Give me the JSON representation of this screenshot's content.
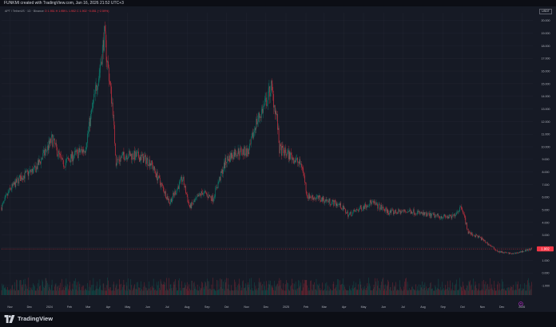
{
  "header": {
    "caption": "FUNKMI created with TradingView.com, Jan 16, 2026 21:52 UTC+3"
  },
  "legend": {
    "symbol": "APT / TetherUS · 1D · Binance",
    "values": "O 1.951  H 1.959  L 1.902  C 1.902  −0.051 (−2.59%)"
  },
  "currency_badge": "USDT",
  "price_tag": {
    "label": "1.902",
    "value": 1.902,
    "color": "#f23645"
  },
  "brand": {
    "label": "TradingView"
  },
  "colors": {
    "up": "#089981",
    "down": "#f23645",
    "background": "#161a25",
    "grid": "#242733",
    "text": "#b2b5be"
  },
  "chart_data": {
    "type": "candlestick",
    "title": "",
    "xlabel": "",
    "ylabel": "",
    "ylim": [
      -1.0,
      21.0
    ],
    "y_ticks": [
      "-1.000",
      "0.000",
      "1.000",
      "2.000",
      "3.000",
      "4.000",
      "5.000",
      "6.000",
      "7.000",
      "8.000",
      "9.000",
      "10.000",
      "11.000",
      "12.000",
      "13.000",
      "14.000",
      "15.000",
      "16.000",
      "17.000",
      "18.000",
      "19.000",
      "20.000"
    ],
    "x_ticks": [
      "Nov",
      "Dec",
      "2024",
      "Feb",
      "Mar",
      "Apr",
      "May",
      "Jun",
      "Jul",
      "Aug",
      "Sep",
      "Oct",
      "Nov",
      "Dec",
      "2025",
      "Feb",
      "Mar",
      "Apr",
      "May",
      "Jun",
      "Jul",
      "Aug",
      "Sep",
      "Oct",
      "Nov",
      "Dec",
      "2026"
    ],
    "x_range": [
      "2023-10-19",
      "2026-01-18"
    ],
    "series": [
      {
        "close_keypoints": [
          [
            "2023-10-19",
            5.2
          ],
          [
            "2023-11-01",
            6.6
          ],
          [
            "2023-11-18",
            7.6
          ],
          [
            "2023-12-10",
            8.2
          ],
          [
            "2023-12-28",
            9.8
          ],
          [
            "2024-01-05",
            10.6
          ],
          [
            "2024-01-22",
            8.6
          ],
          [
            "2024-02-10",
            9.4
          ],
          [
            "2024-02-25",
            9.8
          ],
          [
            "2024-03-08",
            13.2
          ],
          [
            "2024-03-20",
            16.5
          ],
          [
            "2024-03-26",
            18.8
          ],
          [
            "2024-04-08",
            13.0
          ],
          [
            "2024-04-13",
            8.8
          ],
          [
            "2024-04-28",
            9.4
          ],
          [
            "2024-05-20",
            9.2
          ],
          [
            "2024-06-05",
            8.8
          ],
          [
            "2024-06-20",
            7.2
          ],
          [
            "2024-07-05",
            5.6
          ],
          [
            "2024-07-25",
            7.5
          ],
          [
            "2024-08-05",
            5.2
          ],
          [
            "2024-08-25",
            6.4
          ],
          [
            "2024-09-10",
            5.9
          ],
          [
            "2024-09-30",
            8.9
          ],
          [
            "2024-10-15",
            9.6
          ],
          [
            "2024-11-05",
            9.6
          ],
          [
            "2024-11-15",
            11.8
          ],
          [
            "2024-12-01",
            13.5
          ],
          [
            "2024-12-09",
            14.8
          ],
          [
            "2024-12-18",
            12.2
          ],
          [
            "2024-12-22",
            9.8
          ],
          [
            "2025-01-10",
            9.2
          ],
          [
            "2025-01-26",
            8.5
          ],
          [
            "2025-02-03",
            6.1
          ],
          [
            "2025-03-01",
            5.8
          ],
          [
            "2025-03-25",
            5.4
          ],
          [
            "2025-04-08",
            4.6
          ],
          [
            "2025-05-13",
            5.6
          ],
          [
            "2025-06-10",
            4.8
          ],
          [
            "2025-07-15",
            4.9
          ],
          [
            "2025-08-05",
            4.6
          ],
          [
            "2025-09-15",
            4.4
          ],
          [
            "2025-09-30",
            5.3
          ],
          [
            "2025-10-10",
            3.2
          ],
          [
            "2025-10-28",
            2.8
          ],
          [
            "2025-11-25",
            1.7
          ],
          [
            "2025-12-18",
            1.5
          ],
          [
            "2026-01-16",
            1.902
          ]
        ]
      }
    ]
  }
}
